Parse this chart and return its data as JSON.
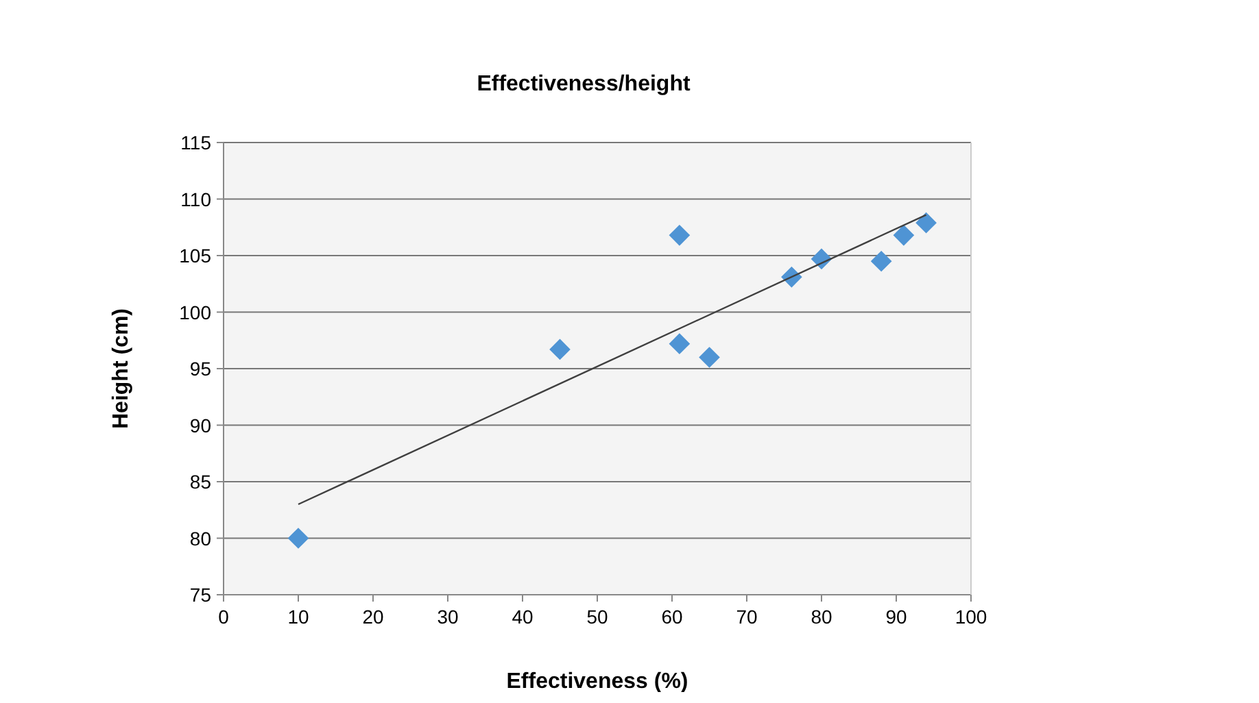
{
  "chart_data": {
    "type": "scatter",
    "title": "Effectiveness/height",
    "xlabel": "Effectiveness (%)",
    "ylabel": "Height (cm)",
    "xlim": [
      0,
      100
    ],
    "xticks": [
      0,
      10,
      20,
      30,
      40,
      50,
      60,
      70,
      80,
      90,
      100
    ],
    "ylim": [
      75,
      115
    ],
    "yticks": [
      75,
      80,
      85,
      90,
      95,
      100,
      105,
      110,
      115
    ],
    "grid": "y",
    "marker": "diamond",
    "series": [
      {
        "color": "#4f94d4",
        "x": [
          10,
          45,
          61,
          61,
          65,
          76,
          80,
          88,
          91,
          94
        ],
        "values": [
          80,
          96.7,
          106.8,
          97.2,
          96,
          103.1,
          104.7,
          104.5,
          106.8,
          107.9
        ]
      },
      {
        "type": "line",
        "color": "#404040",
        "line_style": "solid",
        "marker": "none",
        "x": [
          10,
          94
        ],
        "values": [
          83,
          108.6
        ]
      }
    ]
  }
}
